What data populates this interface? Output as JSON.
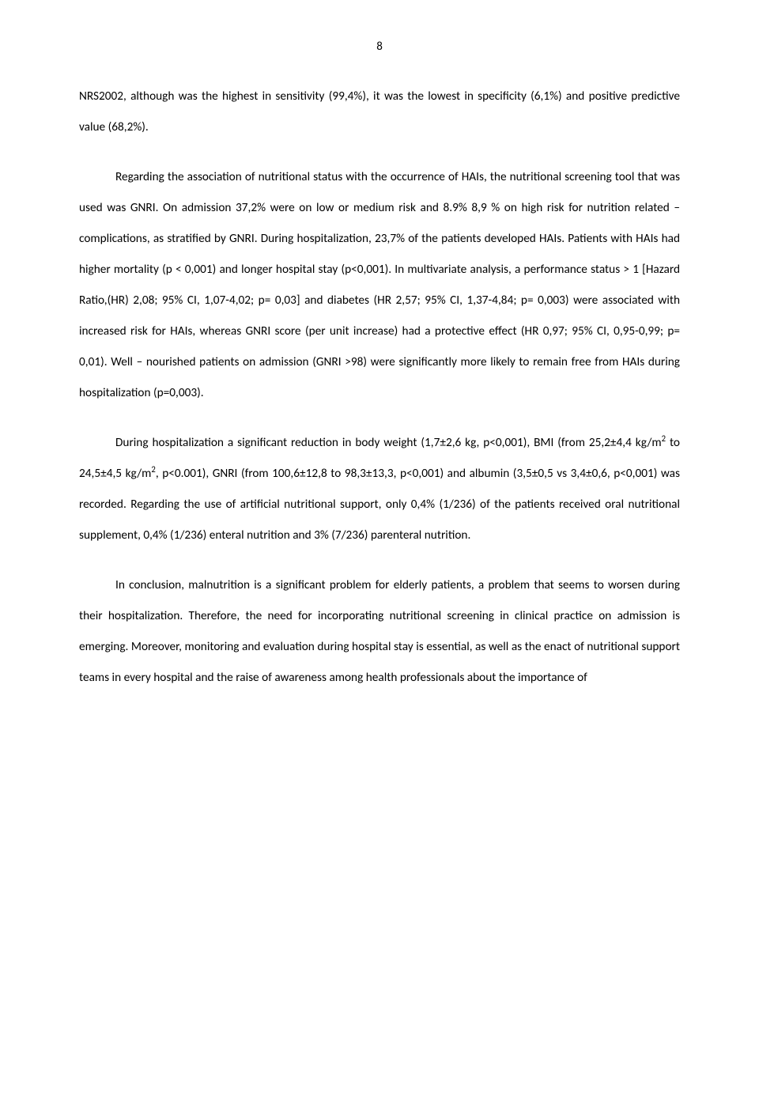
{
  "page_number": "8",
  "paragraphs": [
    {
      "indent": false,
      "html": "NRS2002, although was the highest in sensitivity (99,4%), it was the lowest in specificity (6,1%) and positive predictive value (68,2%)."
    },
    {
      "indent": true,
      "html": "Regarding the association of nutritional status with the occurrence of HAIs, the nutritional screening tool that was used was GNRI. On admission 37,2% were on low or medium risk and 8.9% 8,9 % on high risk for nutrition related – complications, as stratified by GNRI. During hospitalization, 23,7% of the patients developed HAIs. Patients with HAIs had higher mortality (p &lt; 0,001) and longer hospital stay (p&lt;0,001). In multivariate analysis, a performance status &gt; 1 [Hazard Ratio,(HR) 2,08; 95% CI, 1,07-4,02; p= 0,03] and diabetes (HR 2,57; 95% CI, 1,37-4,84; p= 0,003) were associated with increased risk for HAIs, whereas GNRI score (per unit increase) had a protective effect (HR 0,97; 95% CI, 0,95-0,99; p= 0,01). Well – nourished patients on admission (GNRI &gt;98) were significantly more likely to remain free from HAIs during hospitalization (p=0,003)."
    },
    {
      "indent": true,
      "html": "During hospitalization a significant reduction in body weight (1,7±2,6 kg, p&lt;0,001), BMI (from 25,2±4,4 kg/m<sup>2</sup> to 24,5±4,5 kg/m<sup>2</sup>, p&lt;0.001), GNRI (from 100,6±12,8 to 98,3±13,3, p&lt;0,001) and albumin (3,5±0,5 vs 3,4±0,6, p&lt;0,001) was recorded. Regarding the use of artificial nutritional support, only 0,4% (1/236) of the patients received oral nutritional supplement, 0,4% (1/236) enteral nutrition and 3% (7/236) parenteral nutrition."
    },
    {
      "indent": true,
      "html": "In conclusion, malnutrition is a significant problem for elderly patients, a problem that seems to worsen during their hospitalization. Therefore, the need for incorporating nutritional screening in clinical practice on admission is emerging. Moreover, monitoring and evaluation during hospital stay is essential, as well as the enact of nutritional support teams in every hospital and the raise of awareness among health professionals about the importance of"
    }
  ]
}
